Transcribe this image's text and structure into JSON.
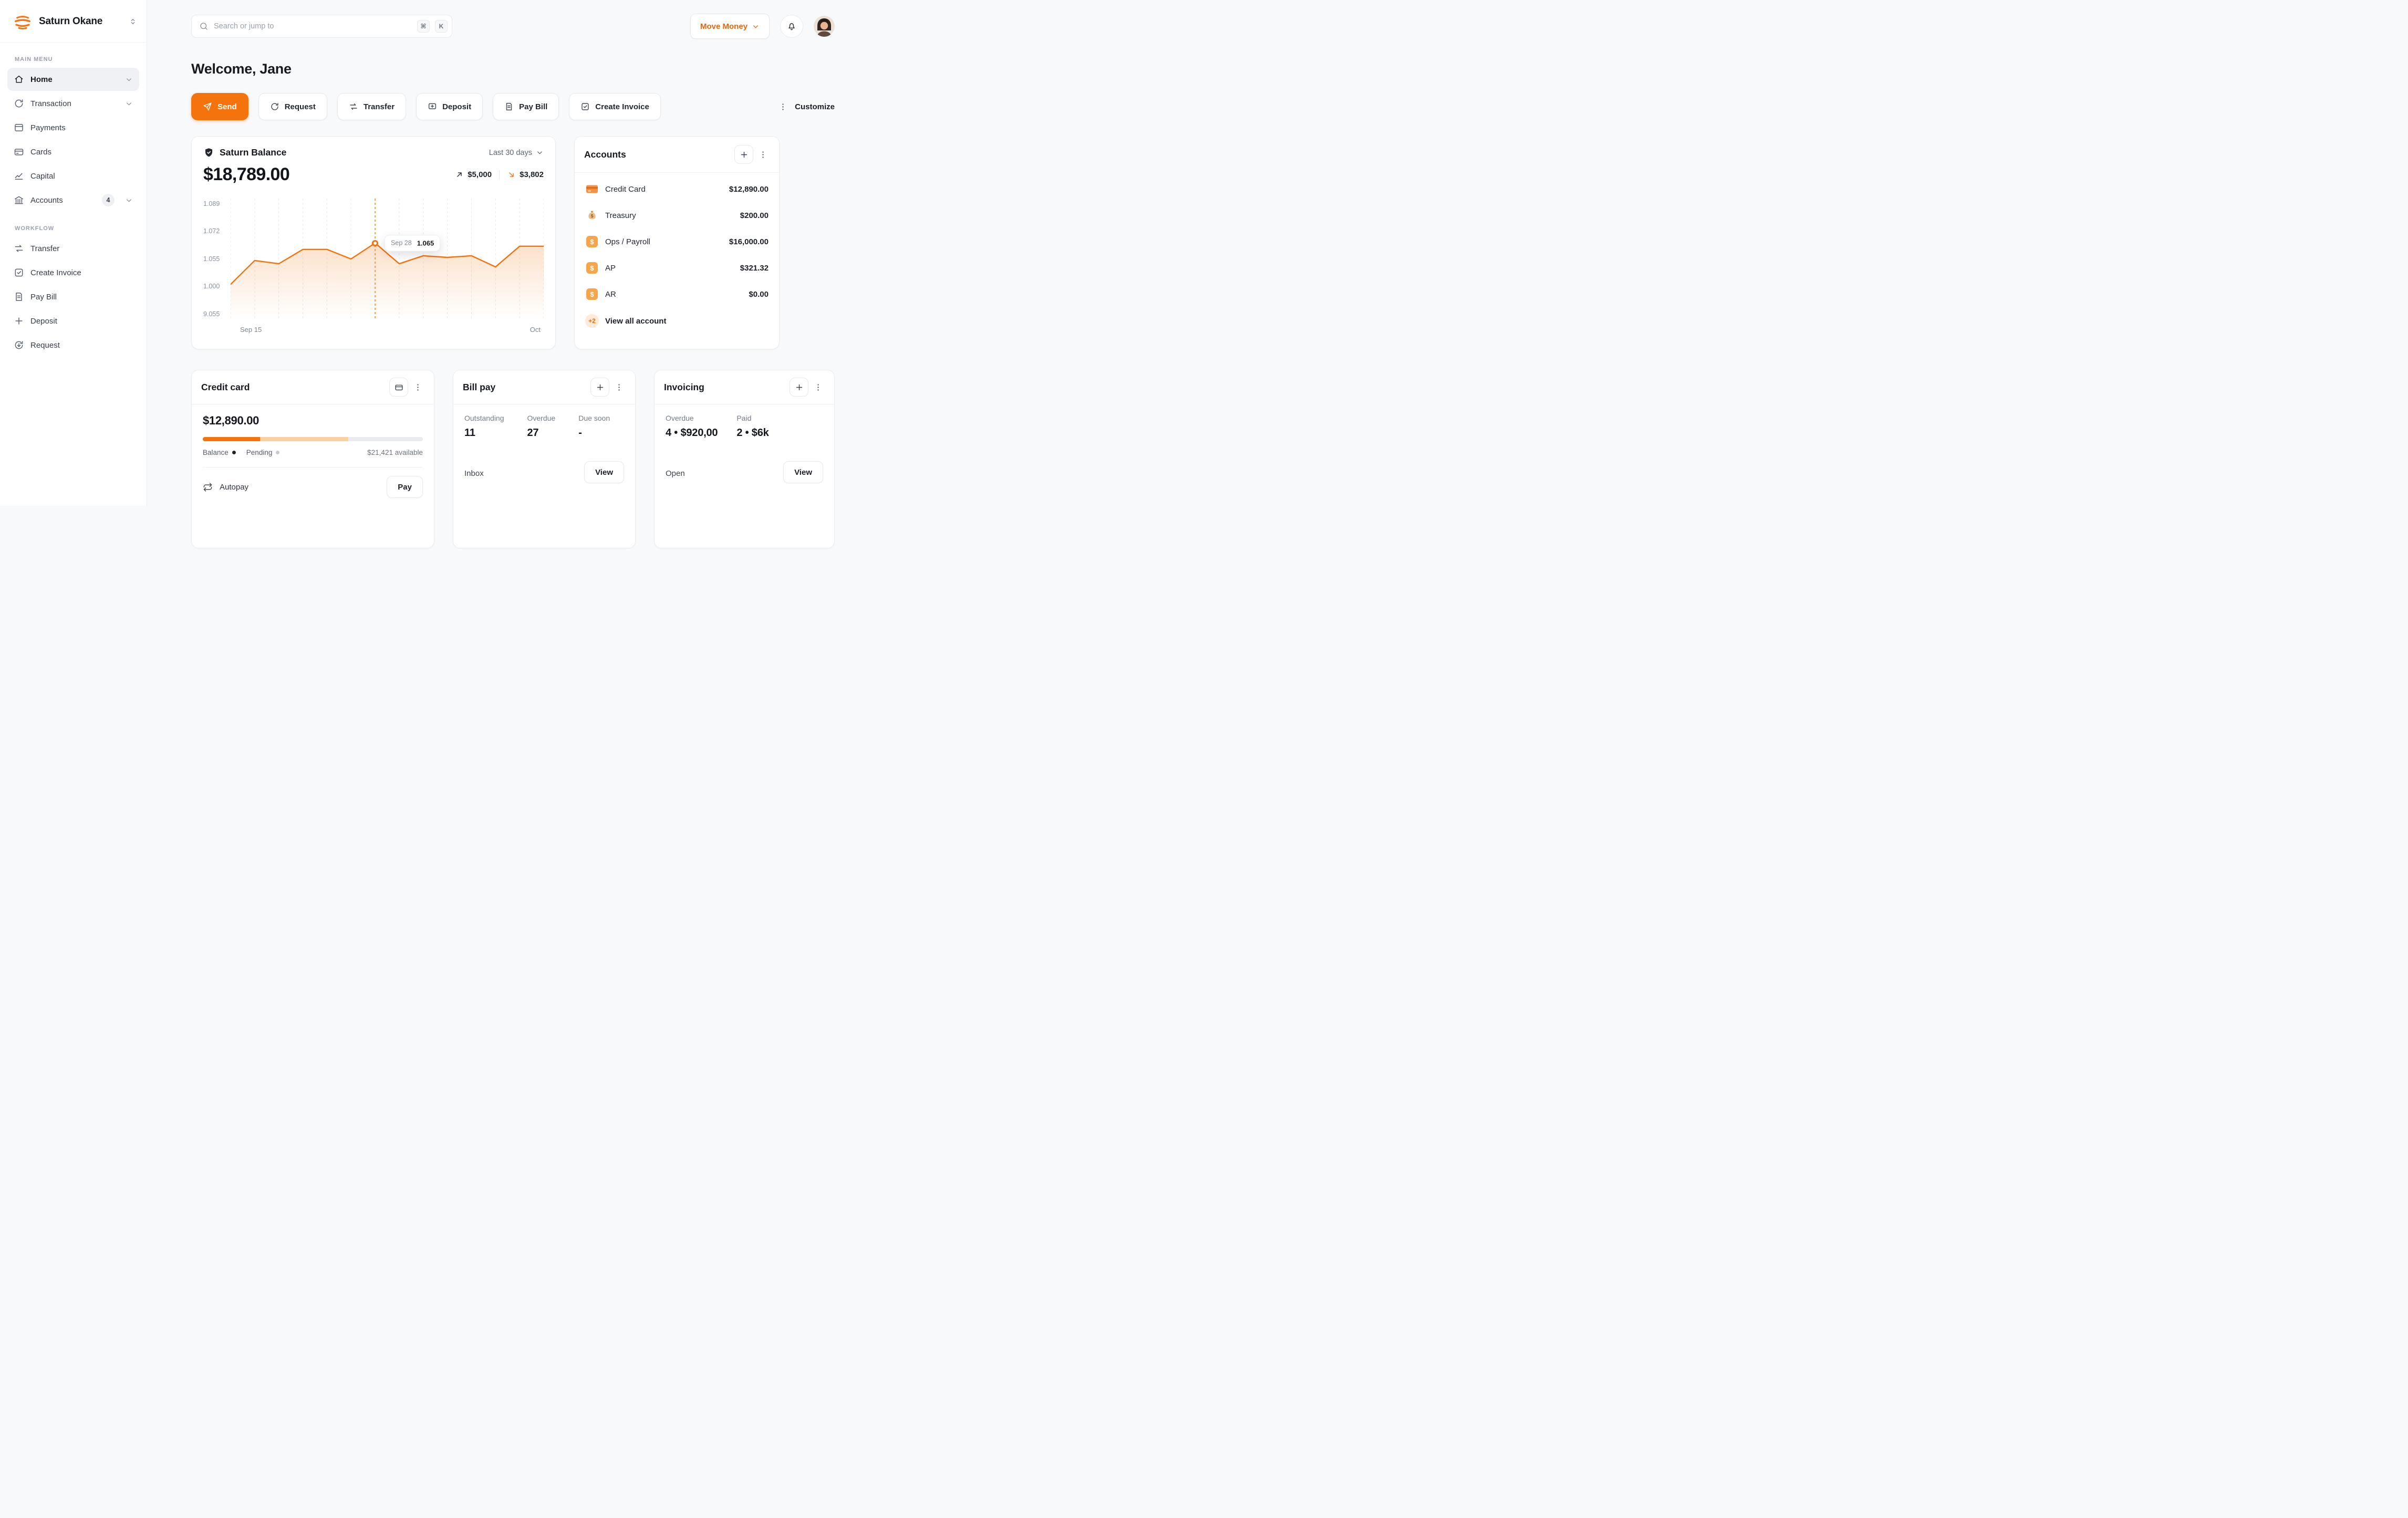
{
  "accent": "#f4730c",
  "sidebar": {
    "workspace": "Saturn Okane",
    "sections": [
      {
        "label": "MAIN MENU",
        "items": [
          {
            "label": "Home",
            "icon": "home-icon"
          },
          {
            "label": "Transaction",
            "icon": "transaction-icon"
          },
          {
            "label": "Payments",
            "icon": "payments-icon"
          },
          {
            "label": "Cards",
            "icon": "cards-icon"
          },
          {
            "label": "Capital",
            "icon": "capital-icon"
          },
          {
            "label": "Accounts",
            "icon": "bank-icon",
            "badge": "4"
          }
        ]
      },
      {
        "label": "WORKFLOW",
        "items": [
          {
            "label": "Transfer",
            "icon": "transfer-icon"
          },
          {
            "label": "Create Invoice",
            "icon": "invoice-icon"
          },
          {
            "label": "Pay Bill",
            "icon": "bill-icon"
          },
          {
            "label": "Deposit",
            "icon": "deposit-icon"
          },
          {
            "label": "Request",
            "icon": "request-icon"
          }
        ]
      }
    ]
  },
  "topbar": {
    "search_placeholder": "Search or jump to",
    "key_cmd": "⌘",
    "key_k": "K",
    "move_money": "Move Money"
  },
  "page": {
    "welcome": "Welcome, Jane"
  },
  "actions": {
    "send": "Send",
    "request": "Request",
    "transfer": "Transfer",
    "deposit": "Deposit",
    "pay_bill": "Pay Bill",
    "create_invoice": "Create Invoice",
    "customize": "Customize"
  },
  "balance_card": {
    "title": "Saturn Balance",
    "period": "Last 30 days",
    "amount": "$18,789.00",
    "inflow": "$5,000",
    "outflow": "$3,802"
  },
  "chart_data": {
    "type": "line",
    "title": "Saturn Balance",
    "x_ticks": [
      "Sep 15",
      "Oct"
    ],
    "y_ticks": [
      "1.089",
      "1.072",
      "1.055",
      "1.000",
      "9.055"
    ],
    "series": [
      {
        "name": "balance",
        "values": [
          1.039,
          1.054,
          1.052,
          1.061,
          1.061,
          1.055,
          1.065,
          1.052,
          1.057,
          1.056,
          1.057,
          1.05,
          1.063,
          1.063
        ]
      }
    ],
    "marker": {
      "index": 6,
      "label": "Sep 28",
      "value": "1.065"
    },
    "ylim_draw": [
      1.017,
      1.093
    ],
    "grid": "vertical-dashed",
    "line_color": "#f4730c",
    "legend": "none"
  },
  "accounts_card": {
    "title": "Accounts",
    "rows": [
      {
        "name": "Credit Card",
        "amount": "$12,890.00",
        "icon": "credit-card-icon"
      },
      {
        "name": "Treasury",
        "amount": "$200.00",
        "icon": "money-bag-icon"
      },
      {
        "name": "Ops / Payroll",
        "amount": "$16,000.00",
        "icon": "dollar-icon"
      },
      {
        "name": "AP",
        "amount": "$321.32",
        "icon": "dollar-icon"
      },
      {
        "name": "AR",
        "amount": "$0.00",
        "icon": "dollar-icon"
      }
    ],
    "more_badge": "+2",
    "view_all": "View all account"
  },
  "credit_card": {
    "title": "Credit card",
    "amount": "$12,890.00",
    "balance_label": "Balance",
    "pending_label": "Pending",
    "available": "$21,421 available",
    "autopay": "Autopay",
    "pay": "Pay",
    "balance_pct": 26,
    "pending_pct": 40
  },
  "bill_pay": {
    "title": "Bill pay",
    "stats": [
      {
        "label": "Outstanding",
        "value": "11"
      },
      {
        "label": "Overdue",
        "value": "27"
      },
      {
        "label": "Due soon",
        "value": "-"
      }
    ],
    "inbox": "Inbox",
    "view": "View"
  },
  "invoicing": {
    "title": "Invoicing",
    "stats": [
      {
        "label": "Overdue",
        "value": "4 • $920,00"
      },
      {
        "label": "Paid",
        "value": "2 • $6k"
      }
    ],
    "open": "Open",
    "view": "View"
  }
}
